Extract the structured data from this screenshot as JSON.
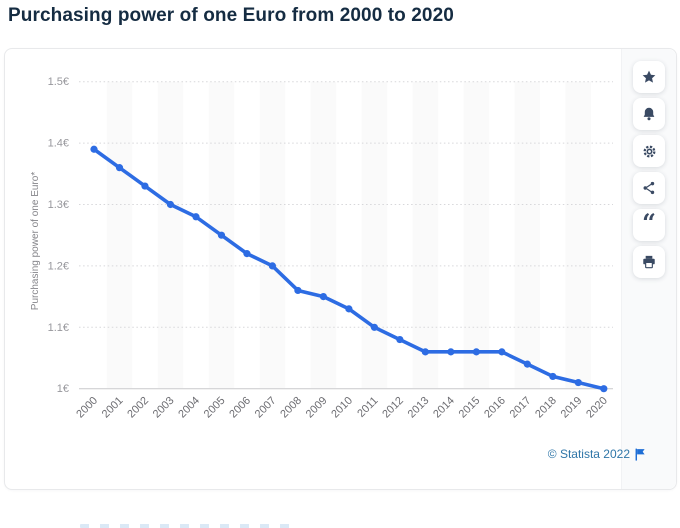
{
  "page": {
    "title": "Purchasing power of one Euro from 2000 to 2020"
  },
  "chart_data": {
    "type": "line",
    "title": "Purchasing power of one Euro from 2000 to 2020",
    "x": [
      2000,
      2001,
      2002,
      2003,
      2004,
      2005,
      2006,
      2007,
      2008,
      2009,
      2010,
      2011,
      2012,
      2013,
      2014,
      2015,
      2016,
      2017,
      2018,
      2019,
      2020
    ],
    "series": [
      {
        "name": "Purchasing power of one Euro*",
        "values": [
          1.39,
          1.36,
          1.33,
          1.3,
          1.28,
          1.25,
          1.22,
          1.2,
          1.16,
          1.15,
          1.13,
          1.1,
          1.08,
          1.06,
          1.06,
          1.06,
          1.06,
          1.04,
          1.02,
          1.01,
          1.0
        ]
      }
    ],
    "xlabel": "",
    "ylabel": "Purchasing power of one Euro*",
    "ylim": [
      1.0,
      1.5
    ],
    "ytick_values": [
      1.0,
      1.1,
      1.2,
      1.3,
      1.4,
      1.5
    ],
    "ytick_labels": [
      "1€",
      "1.1€",
      "1.2€",
      "1.3€",
      "1.4€",
      "1.5€"
    ],
    "grid": "horizontal dotted, alternating vertical year bands",
    "legend": "none"
  },
  "colors": {
    "line": "#2d6ce3",
    "band": "#fafafa",
    "grid_dotted": "#d7d7da",
    "grid_baseline": "#c9c9cc",
    "ytick_text": "#97979c",
    "xtick_text": "#6d6d72",
    "axis_title_text": "#85858a",
    "title_text": "#152c42",
    "icon": "#3a4a63",
    "footer_link": "#2f76a8",
    "flag": "#1e6ed6"
  },
  "toolbar": {
    "buttons": [
      {
        "name": "favorite",
        "icon": "star-icon"
      },
      {
        "name": "alerts",
        "icon": "bell-icon"
      },
      {
        "name": "settings",
        "icon": "gear-icon"
      },
      {
        "name": "share",
        "icon": "share-icon"
      },
      {
        "name": "cite",
        "icon": "quote-icon"
      },
      {
        "name": "print",
        "icon": "print-icon"
      }
    ]
  },
  "footer": {
    "copyright": "© Statista 2022"
  }
}
